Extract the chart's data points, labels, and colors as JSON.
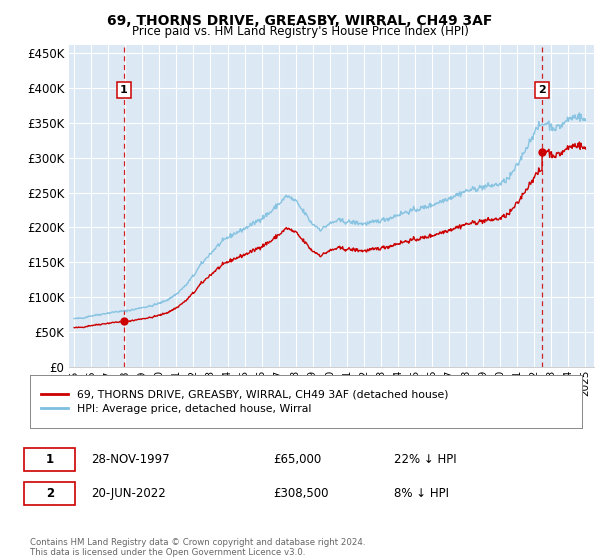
{
  "title": "69, THORNS DRIVE, GREASBY, WIRRAL, CH49 3AF",
  "subtitle": "Price paid vs. HM Land Registry's House Price Index (HPI)",
  "sale1_year_f": 1997.9167,
  "sale1_price": 65000,
  "sale2_year_f": 2022.4583,
  "sale2_price": 308500,
  "hpi_color": "#7fbfdf",
  "sale_color": "#cc0000",
  "marker_color": "#cc0000",
  "dashed_color": "#cc0000",
  "bg_color": "#dce9f5",
  "grid_color": "#ffffff",
  "legend_label1": "69, THORNS DRIVE, GREASBY, WIRRAL, CH49 3AF (detached house)",
  "legend_label2": "HPI: Average price, detached house, Wirral",
  "footer": "Contains HM Land Registry data © Crown copyright and database right 2024.\nThis data is licensed under the Open Government Licence v3.0.",
  "ylim": [
    0,
    462000
  ],
  "yticks": [
    0,
    50000,
    100000,
    150000,
    200000,
    250000,
    300000,
    350000,
    400000,
    450000
  ],
  "xmin_year": 1994.7,
  "xmax_year": 2025.5,
  "xtick_years": [
    1995,
    1996,
    1997,
    1998,
    1999,
    2000,
    2001,
    2002,
    2003,
    2004,
    2005,
    2006,
    2007,
    2008,
    2009,
    2010,
    2011,
    2012,
    2013,
    2014,
    2015,
    2016,
    2017,
    2018,
    2019,
    2020,
    2021,
    2022,
    2023,
    2024,
    2025
  ],
  "hpi_anchors": [
    [
      1995.0,
      69000
    ],
    [
      1995.5,
      70000
    ],
    [
      1996.0,
      73000
    ],
    [
      1996.5,
      75000
    ],
    [
      1997.0,
      77000
    ],
    [
      1997.5,
      79000
    ],
    [
      1998.0,
      80000
    ],
    [
      1998.5,
      82000
    ],
    [
      1999.0,
      85000
    ],
    [
      1999.5,
      87000
    ],
    [
      2000.0,
      91000
    ],
    [
      2000.5,
      96000
    ],
    [
      2001.0,
      104000
    ],
    [
      2001.5,
      115000
    ],
    [
      2002.0,
      130000
    ],
    [
      2002.5,
      148000
    ],
    [
      2003.0,
      162000
    ],
    [
      2003.5,
      175000
    ],
    [
      2004.0,
      185000
    ],
    [
      2004.5,
      192000
    ],
    [
      2005.0,
      198000
    ],
    [
      2005.5,
      205000
    ],
    [
      2006.0,
      213000
    ],
    [
      2006.5,
      221000
    ],
    [
      2007.0,
      233000
    ],
    [
      2007.5,
      245000
    ],
    [
      2008.0,
      238000
    ],
    [
      2008.5,
      222000
    ],
    [
      2009.0,
      205000
    ],
    [
      2009.5,
      197000
    ],
    [
      2010.0,
      205000
    ],
    [
      2010.5,
      210000
    ],
    [
      2011.0,
      208000
    ],
    [
      2011.5,
      207000
    ],
    [
      2012.0,
      205000
    ],
    [
      2012.5,
      207000
    ],
    [
      2013.0,
      210000
    ],
    [
      2013.5,
      213000
    ],
    [
      2014.0,
      218000
    ],
    [
      2014.5,
      222000
    ],
    [
      2015.0,
      225000
    ],
    [
      2015.5,
      228000
    ],
    [
      2016.0,
      232000
    ],
    [
      2016.5,
      237000
    ],
    [
      2017.0,
      242000
    ],
    [
      2017.5,
      247000
    ],
    [
      2018.0,
      252000
    ],
    [
      2018.5,
      255000
    ],
    [
      2019.0,
      258000
    ],
    [
      2019.5,
      260000
    ],
    [
      2020.0,
      262000
    ],
    [
      2020.5,
      270000
    ],
    [
      2021.0,
      288000
    ],
    [
      2021.5,
      312000
    ],
    [
      2022.0,
      335000
    ],
    [
      2022.3,
      345000
    ],
    [
      2022.5,
      348000
    ],
    [
      2022.8,
      350000
    ],
    [
      2023.0,
      345000
    ],
    [
      2023.3,
      342000
    ],
    [
      2023.5,
      345000
    ],
    [
      2023.8,
      350000
    ],
    [
      2024.0,
      355000
    ],
    [
      2024.3,
      358000
    ],
    [
      2024.6,
      360000
    ],
    [
      2024.9,
      355000
    ],
    [
      2025.0,
      353000
    ]
  ]
}
